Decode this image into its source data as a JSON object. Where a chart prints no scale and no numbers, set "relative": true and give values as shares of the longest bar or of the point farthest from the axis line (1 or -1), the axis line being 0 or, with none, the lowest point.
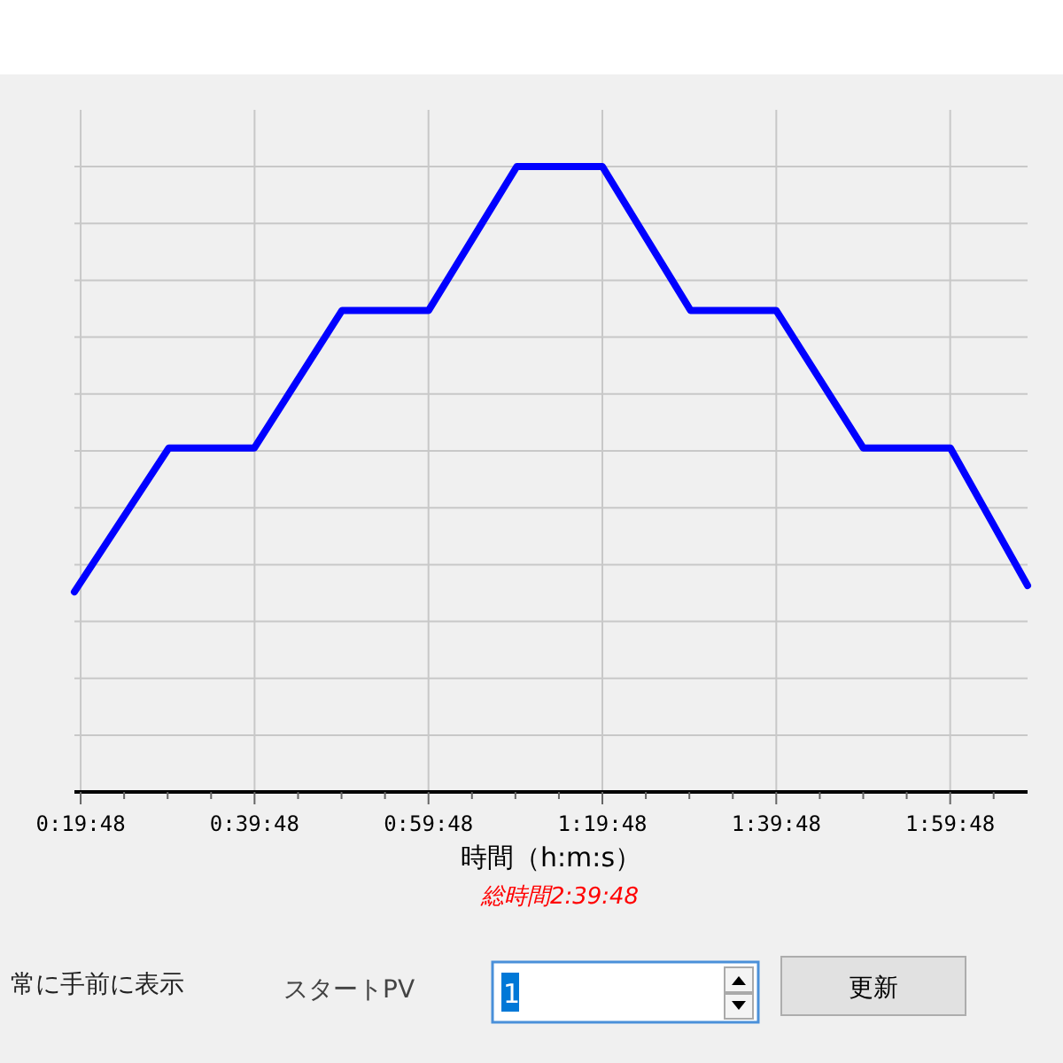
{
  "chart_data": {
    "type": "line",
    "xlabel": "時間（h:m:s）",
    "annotations": [
      "総時間2:39:48",
      "常に手前に表示",
      "スタートPV",
      "1",
      "更新"
    ],
    "x": [
      0.318,
      0.499,
      0.663,
      0.831,
      0.997,
      1.166,
      1.33,
      1.499,
      1.663,
      1.83,
      1.997,
      2.145
    ],
    "series": [
      {
        "color": "#0000ff",
        "values": [
          0.32,
          0.55,
          0.55,
          0.77,
          0.77,
          1,
          1,
          0.77,
          0.77,
          0.55,
          0.55,
          0.33
        ]
      }
    ],
    "relative": true,
    "xlim": [
      0.318,
      2.145
    ],
    "xticks": [
      {
        "value": 0.33,
        "label": "0:19:48"
      },
      {
        "value": 0.4133,
        "label": null
      },
      {
        "value": 0.4967,
        "label": null
      },
      {
        "value": 0.58,
        "label": null
      },
      {
        "value": 0.6633,
        "label": "0:39:48"
      },
      {
        "value": 0.7467,
        "label": null
      },
      {
        "value": 0.83,
        "label": null
      },
      {
        "value": 0.9133,
        "label": null
      },
      {
        "value": 0.9967,
        "label": "0:59:48"
      },
      {
        "value": 1.08,
        "label": null
      },
      {
        "value": 1.1633,
        "label": null
      },
      {
        "value": 1.2467,
        "label": null
      },
      {
        "value": 1.33,
        "label": "1:19:48"
      },
      {
        "value": 1.4133,
        "label": null
      },
      {
        "value": 1.4967,
        "label": null
      },
      {
        "value": 1.58,
        "label": null
      },
      {
        "value": 1.6633,
        "label": "1:39:48"
      },
      {
        "value": 1.7467,
        "label": null
      },
      {
        "value": 1.83,
        "label": null
      },
      {
        "value": 1.9133,
        "label": null
      },
      {
        "value": 1.9967,
        "label": "1:59:48"
      },
      {
        "value": 2.08,
        "label": null
      }
    ],
    "grid": true,
    "line_style": "solid"
  }
}
